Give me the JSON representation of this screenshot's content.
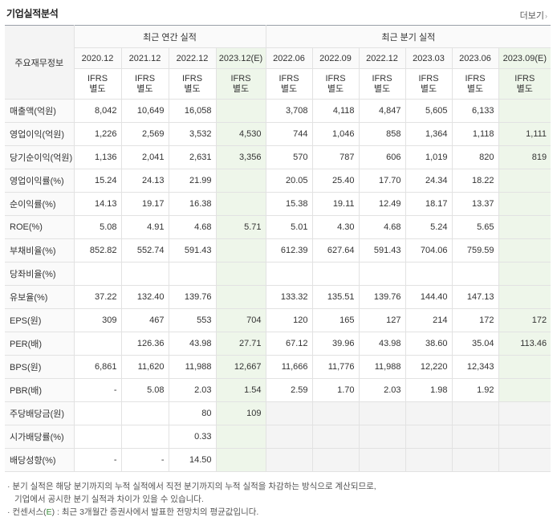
{
  "header": {
    "title": "기업실적분석",
    "more_label": "더보기"
  },
  "table": {
    "corner_label": "주요재무정보",
    "annual_group": "최근 연간 실적",
    "quarter_group": "최근 분기 실적",
    "ifrs_line1": "IFRS",
    "ifrs_line2": "별도",
    "annual_periods": [
      "2020.12",
      "2021.12",
      "2022.12",
      "2023.12(E)"
    ],
    "quarter_periods": [
      "2022.06",
      "2022.09",
      "2022.12",
      "2023.03",
      "2023.06",
      "2023.09(E)"
    ],
    "rows": [
      {
        "label": "매출액(억원)",
        "annual": [
          "8,042",
          "10,649",
          "16,058",
          ""
        ],
        "quarter": [
          "3,708",
          "4,118",
          "4,847",
          "5,605",
          "6,133",
          ""
        ]
      },
      {
        "label": "영업이익(억원)",
        "annual": [
          "1,226",
          "2,569",
          "3,532",
          "4,530"
        ],
        "quarter": [
          "744",
          "1,046",
          "858",
          "1,364",
          "1,118",
          "1,111"
        ]
      },
      {
        "label": "당기순이익(억원)",
        "annual": [
          "1,136",
          "2,041",
          "2,631",
          "3,356"
        ],
        "quarter": [
          "570",
          "787",
          "606",
          "1,019",
          "820",
          "819"
        ]
      },
      {
        "label": "영업이익률(%)",
        "annual": [
          "15.24",
          "24.13",
          "21.99",
          ""
        ],
        "quarter": [
          "20.05",
          "25.40",
          "17.70",
          "24.34",
          "18.22",
          ""
        ]
      },
      {
        "label": "순이익률(%)",
        "annual": [
          "14.13",
          "19.17",
          "16.38",
          ""
        ],
        "quarter": [
          "15.38",
          "19.11",
          "12.49",
          "18.17",
          "13.37",
          ""
        ]
      },
      {
        "label": "ROE(%)",
        "annual": [
          "5.08",
          "4.91",
          "4.68",
          "5.71"
        ],
        "quarter": [
          "5.01",
          "4.30",
          "4.68",
          "5.24",
          "5.65",
          ""
        ]
      },
      {
        "label": "부채비율(%)",
        "annual": [
          "852.82",
          "552.74",
          "591.43",
          ""
        ],
        "quarter": [
          "612.39",
          "627.64",
          "591.43",
          "704.06",
          "759.59",
          ""
        ]
      },
      {
        "label": "당좌비율(%)",
        "annual": [
          "",
          "",
          "",
          ""
        ],
        "quarter": [
          "",
          "",
          "",
          "",
          "",
          ""
        ]
      },
      {
        "label": "유보율(%)",
        "annual": [
          "37.22",
          "132.40",
          "139.76",
          ""
        ],
        "quarter": [
          "133.32",
          "135.51",
          "139.76",
          "144.40",
          "147.13",
          ""
        ]
      },
      {
        "label": "EPS(원)",
        "annual": [
          "309",
          "467",
          "553",
          "704"
        ],
        "quarter": [
          "120",
          "165",
          "127",
          "214",
          "172",
          "172"
        ]
      },
      {
        "label": "PER(배)",
        "annual": [
          "",
          "126.36",
          "43.98",
          "27.71"
        ],
        "quarter": [
          "67.12",
          "39.96",
          "43.98",
          "38.60",
          "35.04",
          "113.46"
        ]
      },
      {
        "label": "BPS(원)",
        "annual": [
          "6,861",
          "11,620",
          "11,988",
          "12,667"
        ],
        "quarter": [
          "11,666",
          "11,776",
          "11,988",
          "12,220",
          "12,343",
          ""
        ]
      },
      {
        "label": "PBR(배)",
        "annual": [
          "-",
          "5.08",
          "2.03",
          "1.54"
        ],
        "quarter": [
          "2.59",
          "1.70",
          "2.03",
          "1.98",
          "1.92",
          ""
        ]
      }
    ],
    "dividend_rows": [
      {
        "label": "주당배당금(원)",
        "annual": [
          "",
          "",
          "80",
          "109"
        ]
      },
      {
        "label": "시가배당률(%)",
        "annual": [
          "",
          "",
          "0.33",
          ""
        ]
      },
      {
        "label": "배당성향(%)",
        "annual": [
          "-",
          "-",
          "14.50",
          ""
        ]
      }
    ]
  },
  "notes": {
    "line1": "· 분기 실적은 해당 분기까지의 누적 실적에서 직전 분기까지의 누적 실적을 차감하는 방식으로 계산되므로,",
    "line2": "기업에서 공시한 분기 실적과 차이가 있을 수 있습니다.",
    "line3_pre": "· 컨센서스(",
    "line3_e": "E",
    "line3_post": ") : 최근 3개월간 증권사에서 발표한 전망치의 평균값입니다."
  },
  "colors": {
    "ifrs": "#e86b13",
    "estimate_bg": "#eef6ea",
    "empty_bg": "#f4f4f4",
    "label_bg": "#fafafa"
  }
}
